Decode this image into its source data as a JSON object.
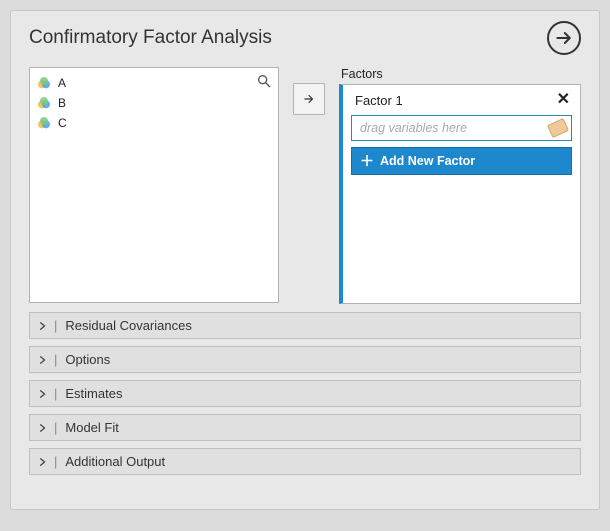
{
  "title": "Confirmatory Factor Analysis",
  "variables": [
    "A",
    "B",
    "C"
  ],
  "factors_label": "Factors",
  "factor": {
    "name": "Factor 1",
    "placeholder": "drag variables here"
  },
  "add_factor_label": "Add New Factor",
  "sections": [
    "Residual Covariances",
    "Options",
    "Estimates",
    "Model Fit",
    "Additional Output"
  ],
  "colors": {
    "accent": "#1e88cc",
    "panel_bg": "#e8e8e8",
    "border": "#b3b3b3"
  }
}
